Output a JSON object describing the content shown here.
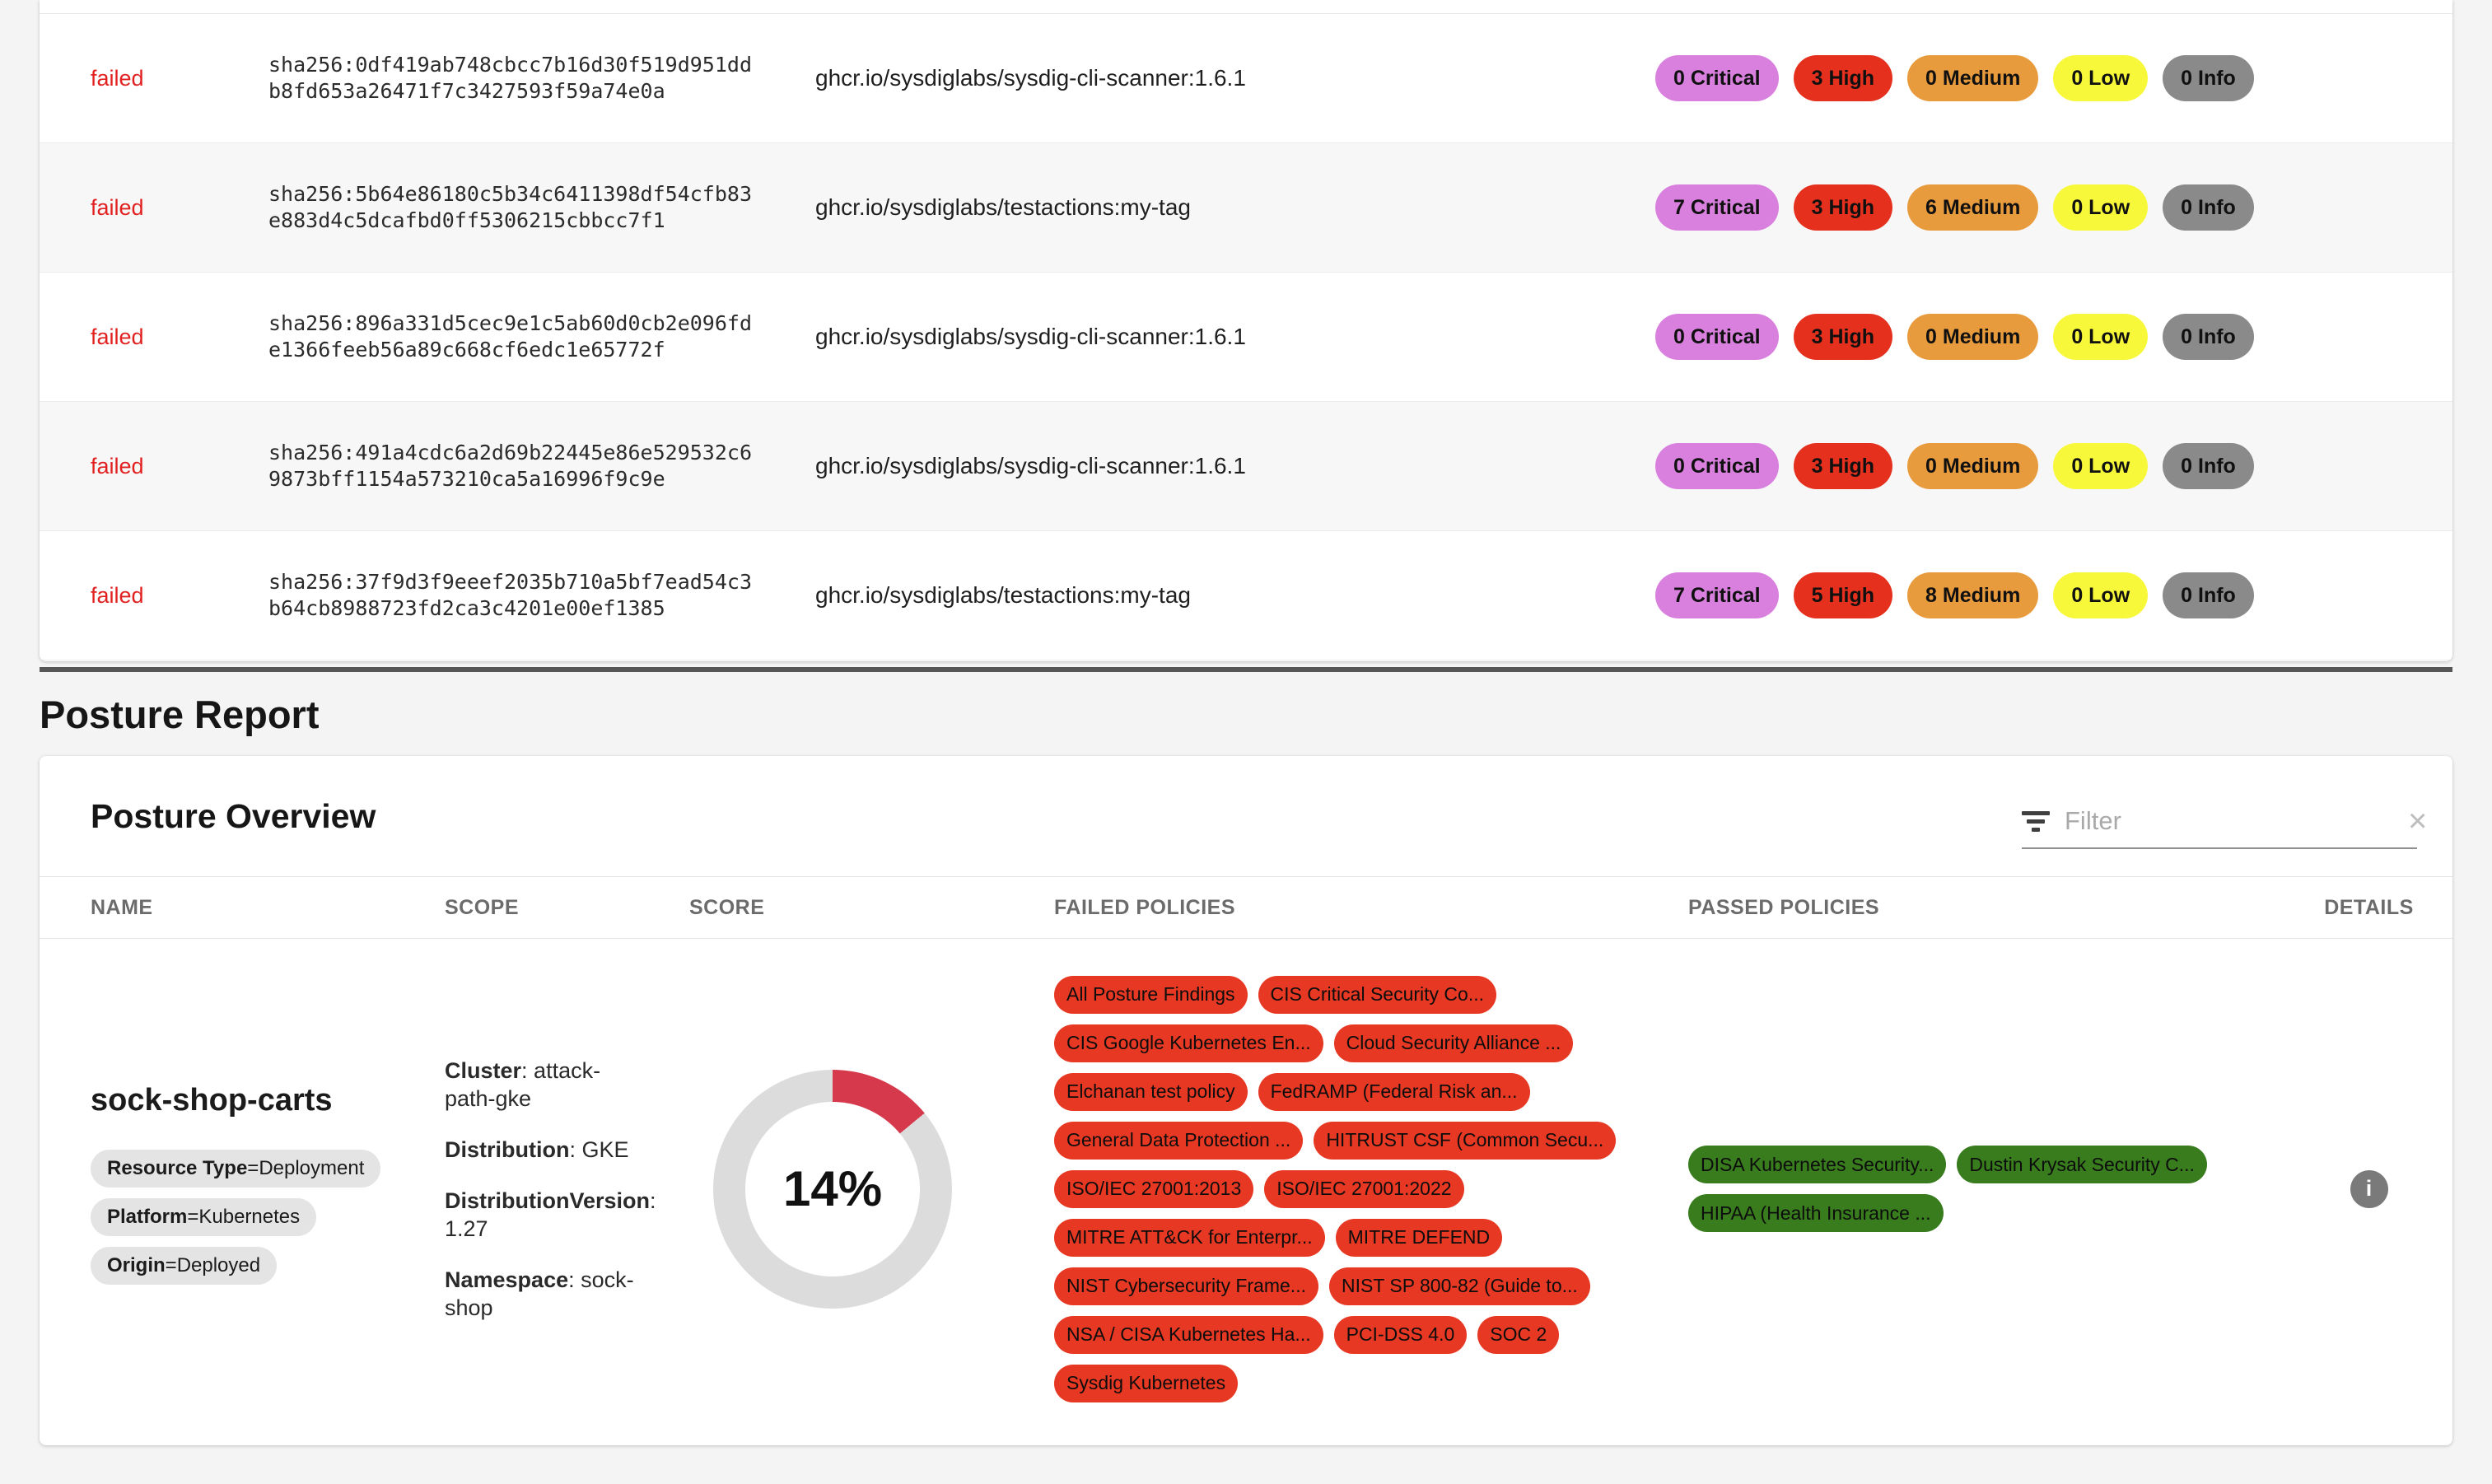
{
  "theme": {
    "critical": "#d980de",
    "high": "#e5301d",
    "medium": "#e89b3c",
    "low": "#f8f83b",
    "info": "#8a8a8a",
    "pill-red": "#e73823",
    "pill-green": "#387c1e",
    "score-red": "#d5394b",
    "donut-gray": "#dcdcdc",
    "failed-text": "#e12120"
  },
  "strings": {
    "kv_sep": ": ",
    "tag_sep": " = "
  },
  "scan_table": {
    "rows": [
      {
        "status": "failed",
        "digest": "sha256:0df419ab748cbcc7b16d30f519d951ddb8fd653a26471f7c3427593f59a74e0a",
        "image": "ghcr.io/sysdiglabs/sysdig-cli-scanner:1.6.1",
        "badges": {
          "critical": "0 Critical",
          "high": "3 High",
          "medium": "0 Medium",
          "low": "0 Low",
          "info": "0 Info"
        }
      },
      {
        "status": "failed",
        "digest": "sha256:5b64e86180c5b34c6411398df54cfb83e883d4c5dcafbd0ff5306215cbbcc7f1",
        "image": "ghcr.io/sysdiglabs/testactions:my-tag",
        "badges": {
          "critical": "7 Critical",
          "high": "3 High",
          "medium": "6 Medium",
          "low": "0 Low",
          "info": "0 Info"
        }
      },
      {
        "status": "failed",
        "digest": "sha256:896a331d5cec9e1c5ab60d0cb2e096fde1366feeb56a89c668cf6edc1e65772f",
        "image": "ghcr.io/sysdiglabs/sysdig-cli-scanner:1.6.1",
        "badges": {
          "critical": "0 Critical",
          "high": "3 High",
          "medium": "0 Medium",
          "low": "0 Low",
          "info": "0 Info"
        }
      },
      {
        "status": "failed",
        "digest": "sha256:491a4cdc6a2d69b22445e86e529532c69873bff1154a573210ca5a16996f9c9e",
        "image": "ghcr.io/sysdiglabs/sysdig-cli-scanner:1.6.1",
        "badges": {
          "critical": "0 Critical",
          "high": "3 High",
          "medium": "0 Medium",
          "low": "0 Low",
          "info": "0 Info"
        }
      },
      {
        "status": "failed",
        "digest": "sha256:37f9d3f9eeef2035b710a5bf7ead54c3b64cb8988723fd2ca3c4201e00ef1385",
        "image": "ghcr.io/sysdiglabs/testactions:my-tag",
        "badges": {
          "critical": "7 Critical",
          "high": "5 High",
          "medium": "8 Medium",
          "low": "0 Low",
          "info": "0 Info"
        }
      }
    ]
  },
  "posture": {
    "section_title": "Posture Report",
    "card_title": "Posture Overview",
    "filter": {
      "placeholder": "Filter",
      "clear_icon": "×"
    },
    "columns": [
      "NAME",
      "SCOPE",
      "SCORE",
      "FAILED POLICIES",
      "PASSED POLICIES",
      "DETAILS"
    ],
    "row": {
      "name": "sock-shop-carts",
      "tags": [
        {
          "key": "Resource Type",
          "value": "Deployment"
        },
        {
          "key": "Platform",
          "value": "Kubernetes"
        },
        {
          "key": "Origin",
          "value": "Deployed"
        }
      ],
      "scope": [
        {
          "label": "Cluster",
          "value": "attack-path-gke"
        },
        {
          "label": "Distribution",
          "value": "GKE"
        },
        {
          "label": "DistributionVersion",
          "value": "1.27"
        },
        {
          "label": "Namespace",
          "value": "sock-shop"
        }
      ],
      "score_percent": 14,
      "score_label": "14%",
      "failed_policies": [
        "All Posture Findings",
        "CIS Critical Security Co...",
        "CIS Google Kubernetes En...",
        "Cloud Security Alliance ...",
        "Elchanan test policy",
        "FedRAMP (Federal Risk an...",
        "General Data Protection ...",
        "HITRUST CSF (Common Secu...",
        "ISO/IEC 27001:2013",
        "ISO/IEC 27001:2022",
        "MITRE ATT&CK for Enterpr...",
        "MITRE DEFEND",
        "NIST Cybersecurity Frame...",
        "NIST SP 800-82 (Guide to...",
        "NSA / CISA Kubernetes Ha...",
        "PCI-DSS 4.0",
        "SOC 2",
        "Sysdig Kubernetes"
      ],
      "passed_policies": [
        "DISA Kubernetes Security...",
        "Dustin Krysak Security C...",
        "HIPAA (Health Insurance ..."
      ],
      "details_icon": "i"
    }
  }
}
